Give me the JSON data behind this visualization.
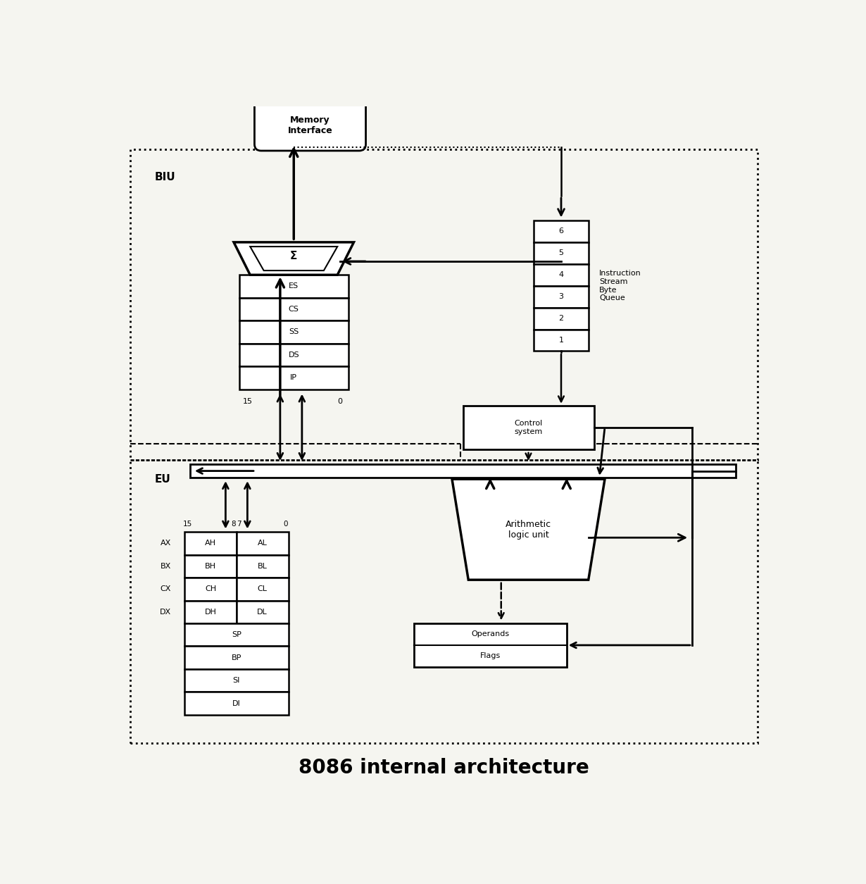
{
  "title": "8086 internal architecture",
  "title_fontsize": 20,
  "bg_color": "#f5f5f0",
  "fig_width": 12.3,
  "fig_height": 12.55,
  "biu_label": "BIU",
  "eu_label": "EU",
  "memory_interface_label": "Memory\nInterface",
  "segment_regs": [
    "ES",
    "CS",
    "SS",
    "DS",
    "IP"
  ],
  "queue_labels": [
    "6",
    "5",
    "4",
    "3",
    "2",
    "1"
  ],
  "queue_title": "Instruction\nStream\nByte\nQueue",
  "control_label": "Control\nsystem",
  "alu_label": "Arithmetic\nlogic unit",
  "operands_label": "Operands",
  "flags_label": "Flags",
  "gp_regs_left": [
    "AH",
    "BH",
    "CH",
    "DH"
  ],
  "gp_regs_right": [
    "AL",
    "BL",
    "CL",
    "DL"
  ],
  "gp_labels": [
    "AX",
    "BX",
    "CX",
    "DX"
  ],
  "pointer_regs": [
    "SP",
    "BP",
    "SI",
    "DI"
  ],
  "sigma_label": "Σ"
}
